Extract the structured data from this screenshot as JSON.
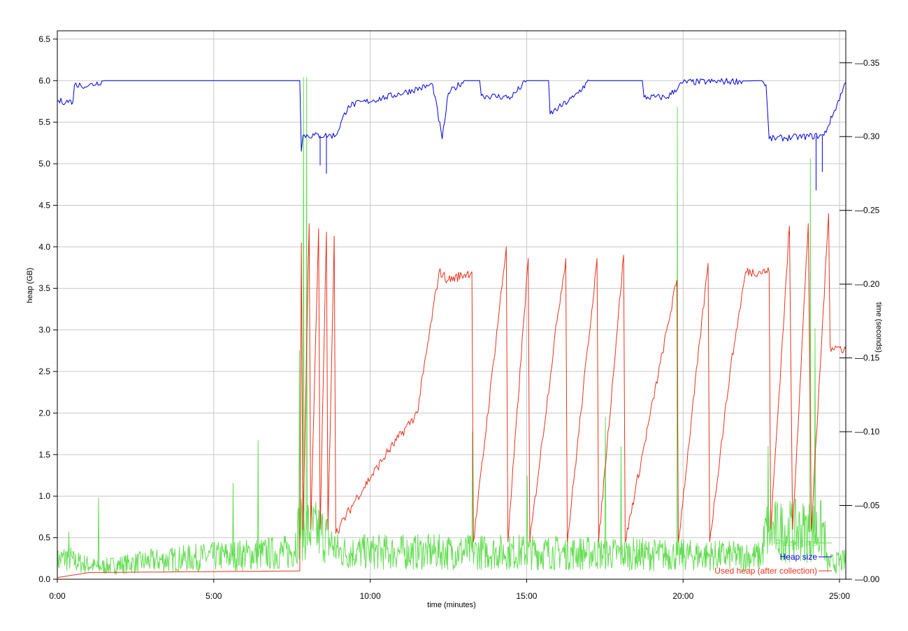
{
  "chart_data": {
    "type": "line",
    "title": "",
    "xlabel": "time (minutes)",
    "ylabel_left": "heap (GB)",
    "ylabel_right": "time (seconds)",
    "x_range_minutes": [
      0,
      25.2
    ],
    "y_left_range": [
      0,
      6.6
    ],
    "y_right_range": [
      0,
      0.3717
    ],
    "x_ticks": [
      {
        "value": 0,
        "label": "0:00"
      },
      {
        "value": 5,
        "label": "5:00"
      },
      {
        "value": 10,
        "label": "10:00"
      },
      {
        "value": 15,
        "label": "15:00"
      },
      {
        "value": 20,
        "label": "20:00"
      },
      {
        "value": 25,
        "label": "25:00"
      }
    ],
    "y_left_ticks": [
      {
        "value": 0.0,
        "label": "0.0"
      },
      {
        "value": 0.5,
        "label": "0.5"
      },
      {
        "value": 1.0,
        "label": "1.0"
      },
      {
        "value": 1.5,
        "label": "1.5"
      },
      {
        "value": 2.0,
        "label": "2.0"
      },
      {
        "value": 2.5,
        "label": "2.5"
      },
      {
        "value": 3.0,
        "label": "3.0"
      },
      {
        "value": 3.5,
        "label": "3.5"
      },
      {
        "value": 4.0,
        "label": "4.0"
      },
      {
        "value": 4.5,
        "label": "4.5"
      },
      {
        "value": 5.0,
        "label": "5.0"
      },
      {
        "value": 5.5,
        "label": "5.5"
      },
      {
        "value": 6.0,
        "label": "6.0"
      },
      {
        "value": 6.5,
        "label": "6.5"
      }
    ],
    "y_right_ticks": [
      {
        "value": 0.0,
        "label": "0.00"
      },
      {
        "value": 0.05,
        "label": "0.05"
      },
      {
        "value": 0.1,
        "label": "0.10"
      },
      {
        "value": 0.15,
        "label": "0.15"
      },
      {
        "value": 0.2,
        "label": "0.20"
      },
      {
        "value": 0.25,
        "label": "0.25"
      },
      {
        "value": 0.3,
        "label": "0.30"
      },
      {
        "value": 0.35,
        "label": "0.35"
      }
    ],
    "grid": true,
    "legend_position": "bottom-right",
    "series": [
      {
        "name": "Pause time",
        "axis": "right",
        "color": "#66dd55",
        "style": "noisy",
        "points": [
          [
            0,
            0.012
          ],
          [
            0.35,
            0.015
          ],
          [
            0.5,
            0.012
          ],
          [
            1.3,
            0.008
          ],
          [
            3.0,
            0.012
          ],
          [
            5.0,
            0.015
          ],
          [
            7.5,
            0.018
          ],
          [
            7.75,
            0.035
          ],
          [
            8.5,
            0.03
          ],
          [
            9.0,
            0.018
          ],
          [
            15.0,
            0.018
          ],
          [
            20.0,
            0.016
          ],
          [
            22.5,
            0.015
          ],
          [
            22.65,
            0.032
          ],
          [
            24.5,
            0.032
          ],
          [
            24.6,
            0.01
          ],
          [
            25.2,
            0.012
          ]
        ],
        "spikes": [
          [
            0.35,
            0.032
          ],
          [
            1.3,
            0.055
          ],
          [
            5.6,
            0.065
          ],
          [
            6.4,
            0.094
          ],
          [
            7.72,
            0.155
          ],
          [
            7.85,
            0.34
          ],
          [
            7.95,
            0.34
          ],
          [
            13.25,
            0.1
          ],
          [
            15.0,
            0.07
          ],
          [
            17.5,
            0.11
          ],
          [
            18.0,
            0.09
          ],
          [
            19.8,
            0.32
          ],
          [
            22.7,
            0.09
          ],
          [
            24.05,
            0.285
          ],
          [
            24.2,
            0.17
          ]
        ]
      },
      {
        "name": "Heap size",
        "axis": "left",
        "color": "#0000dd",
        "style": "step",
        "points": [
          [
            0,
            5.75
          ],
          [
            0.5,
            5.75
          ],
          [
            0.55,
            5.95
          ],
          [
            1.0,
            5.94
          ],
          [
            1.5,
            6.0
          ],
          [
            7.75,
            6.0
          ],
          [
            7.8,
            5.15
          ],
          [
            7.85,
            5.34
          ],
          [
            8.9,
            5.34
          ],
          [
            9.3,
            5.7
          ],
          [
            10.5,
            5.8
          ],
          [
            12.0,
            5.95
          ],
          [
            12.3,
            5.3
          ],
          [
            12.5,
            5.85
          ],
          [
            13.0,
            6.0
          ],
          [
            13.5,
            6.0
          ],
          [
            13.55,
            5.82
          ],
          [
            14.5,
            5.8
          ],
          [
            15.0,
            6.0
          ],
          [
            15.7,
            6.0
          ],
          [
            15.75,
            5.6
          ],
          [
            16.5,
            5.8
          ],
          [
            17.0,
            6.0
          ],
          [
            18.7,
            6.0
          ],
          [
            18.75,
            5.8
          ],
          [
            19.5,
            5.8
          ],
          [
            20.0,
            5.98
          ],
          [
            22.5,
            6.0
          ],
          [
            22.65,
            5.95
          ],
          [
            22.75,
            5.3
          ],
          [
            24.5,
            5.34
          ],
          [
            24.8,
            5.6
          ],
          [
            25.2,
            5.98
          ]
        ],
        "spikes": [
          [
            8.4,
            4.98
          ],
          [
            8.6,
            4.88
          ],
          [
            24.25,
            4.68
          ],
          [
            24.45,
            4.9
          ]
        ]
      },
      {
        "name": "Used heap (after collection)",
        "axis": "left",
        "color": "#e8321e",
        "style": "sawtooth",
        "points": [
          [
            0,
            0.02
          ],
          [
            1.0,
            0.08
          ],
          [
            7.75,
            0.1
          ],
          [
            7.8,
            4.05
          ],
          [
            7.85,
            0.6
          ],
          [
            8.05,
            4.28
          ],
          [
            8.1,
            0.6
          ],
          [
            8.35,
            4.22
          ],
          [
            8.4,
            0.6
          ],
          [
            8.6,
            4.18
          ],
          [
            8.65,
            0.6
          ],
          [
            8.85,
            4.13
          ],
          [
            8.9,
            0.55
          ],
          [
            9.6,
            1.0
          ],
          [
            10.5,
            1.5
          ],
          [
            11.5,
            2.0
          ],
          [
            12.2,
            3.7
          ],
          [
            12.5,
            3.6
          ],
          [
            13.25,
            3.7
          ],
          [
            13.3,
            0.45
          ],
          [
            14.35,
            4.0
          ],
          [
            14.4,
            0.45
          ],
          [
            15.05,
            3.86
          ],
          [
            15.1,
            0.45
          ],
          [
            16.0,
            3.2
          ],
          [
            16.25,
            3.86
          ],
          [
            16.3,
            0.45
          ],
          [
            17.25,
            3.86
          ],
          [
            17.3,
            0.45
          ],
          [
            18.1,
            3.9
          ],
          [
            18.15,
            0.45
          ],
          [
            19.8,
            3.6
          ],
          [
            19.85,
            0.45
          ],
          [
            20.8,
            3.8
          ],
          [
            20.85,
            0.45
          ],
          [
            21.5,
            2.5
          ],
          [
            22.0,
            3.7
          ],
          [
            22.75,
            3.7
          ],
          [
            22.8,
            0.6
          ],
          [
            23.4,
            4.25
          ],
          [
            23.5,
            0.6
          ],
          [
            24.0,
            4.28
          ],
          [
            24.1,
            0.6
          ],
          [
            24.65,
            4.4
          ],
          [
            24.7,
            2.8
          ],
          [
            25.2,
            2.77
          ]
        ]
      }
    ]
  }
}
